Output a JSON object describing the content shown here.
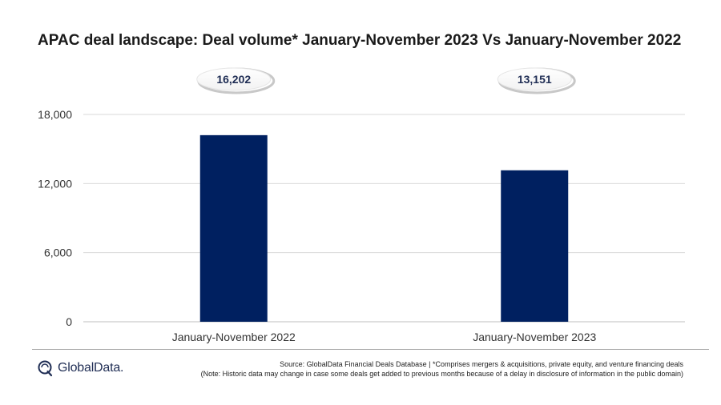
{
  "title": "APAC deal landscape: Deal volume* January-November 2023 Vs January-November 2022",
  "chart_data": {
    "type": "bar",
    "categories": [
      "January-November 2022",
      "January-November 2023"
    ],
    "values": [
      16202,
      13151
    ],
    "data_labels": [
      "16,202",
      "13,151"
    ],
    "yticks": [
      "0",
      "6,000",
      "12,000",
      "18,000"
    ],
    "ylim": [
      0,
      18000
    ],
    "ytick_values": [
      0,
      6000,
      12000,
      18000
    ],
    "grid": true,
    "bar_color": "#002060"
  },
  "footer": {
    "logo_text": "GlobalData.",
    "source": "Source: GlobalData Financial Deals Database | *Comprises mergers & acquisitions, private equity, and venture financing deals",
    "note": "(Note: Historic data may change in case some deals get added to previous months because of a delay in disclosure of information in the public domain)"
  }
}
